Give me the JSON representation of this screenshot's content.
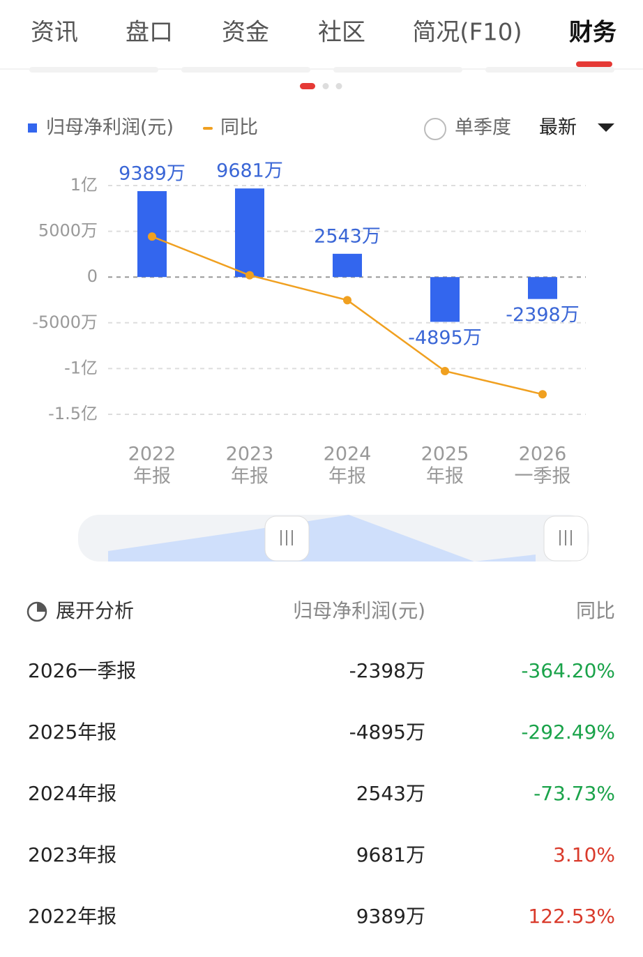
{
  "tabs": [
    "资讯",
    "盘口",
    "资金",
    "社区",
    "简况(F10)",
    "财务"
  ],
  "controls": {
    "quarterly": "单季度",
    "period": "最新"
  },
  "chart_data": {
    "type": "bar",
    "categories": [
      [
        "2022",
        "年报"
      ],
      [
        "2023",
        "年报"
      ],
      [
        "2024",
        "年报"
      ],
      [
        "2025",
        "年报"
      ],
      [
        "2026",
        "一季报"
      ]
    ],
    "series": [
      {
        "name": "归母净利润(元)",
        "type": "bar",
        "color": "#3366ee",
        "values": [
          93890000,
          96810000,
          25430000,
          -48950000,
          -23980000
        ],
        "value_labels": [
          "9389万",
          "9681万",
          "2543万",
          "-4895万",
          "-2398万"
        ]
      },
      {
        "name": "同比",
        "type": "line",
        "color": "#f0a020",
        "axis": "y2",
        "values": [
          122.53,
          3.1,
          -73.73,
          -292.49,
          -364.2
        ]
      }
    ],
    "ylim": [
      -150000000,
      100000000
    ],
    "yticks": [
      {
        "value": 100000000,
        "label": "1亿"
      },
      {
        "value": 50000000,
        "label": "5000万"
      },
      0,
      {
        "value": -50000000,
        "label": "-5000万"
      },
      {
        "value": -100000000,
        "label": "-1亿"
      },
      {
        "value": -150000000,
        "label": "-1.5亿"
      }
    ],
    "y2lim": [
      -426,
      280
    ],
    "grid": true
  },
  "table": {
    "header": [
      "展开分析",
      "归母净利润(元)",
      "同比"
    ],
    "rows": [
      [
        "2026一季报",
        "-2398万",
        "-364.20%"
      ],
      [
        "2025年报",
        "-4895万",
        "-292.49%"
      ],
      [
        "2024年报",
        "2543万",
        "-73.73%"
      ],
      [
        "2023年报",
        "9681万",
        "3.10%"
      ],
      [
        "2022年报",
        "9389万",
        "122.53%"
      ]
    ]
  }
}
